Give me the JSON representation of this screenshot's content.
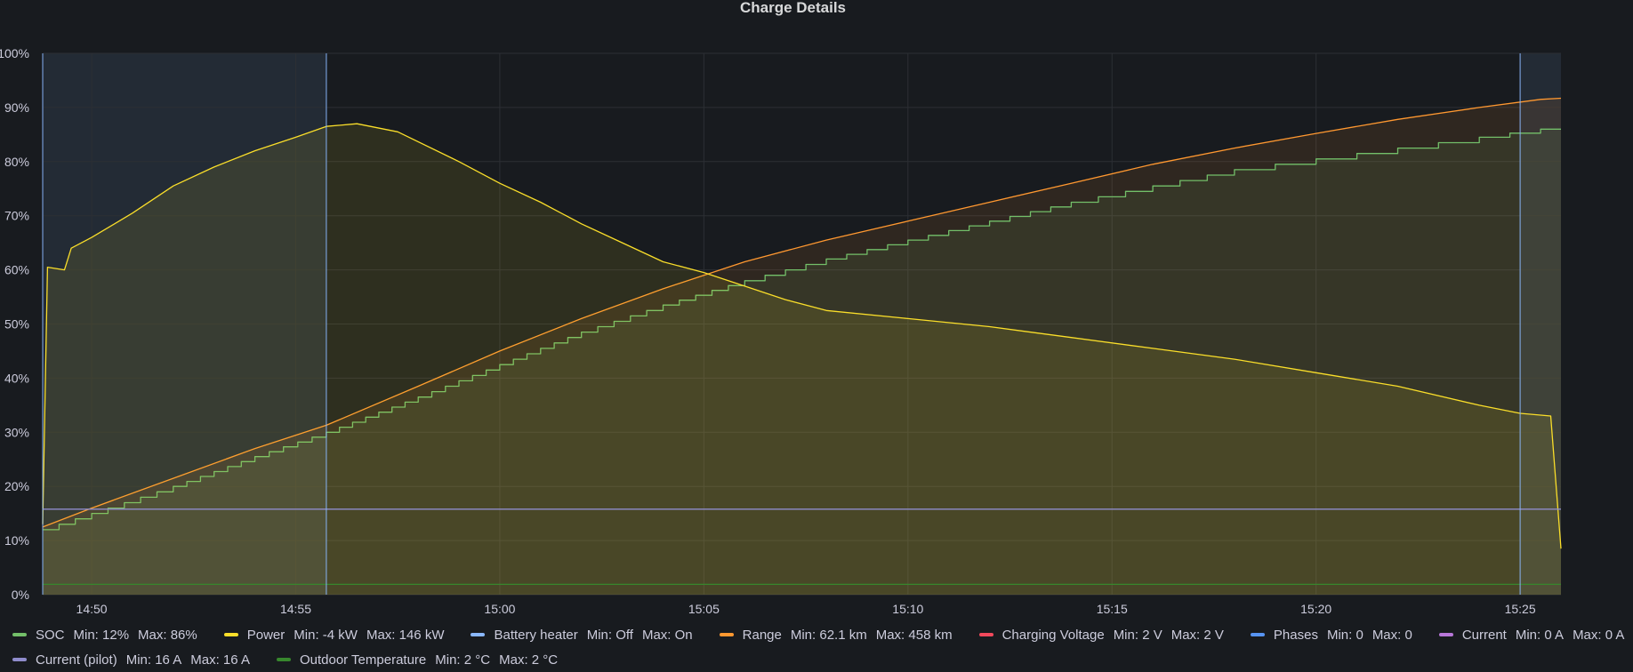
{
  "panel": {
    "title": "Charge Details"
  },
  "colors": {
    "background": "#181b1f",
    "grid": "#2c2f34",
    "soc": "#73bf69",
    "power": "#fade2a",
    "battery_heater": "#8ab8ff",
    "range": "#ff9830",
    "charging_voltage": "#f2495c",
    "phases": "#5794f2",
    "current": "#b877d9",
    "current_pilot": "#8f8ccc",
    "outdoor_temperature": "#37872d",
    "region": "#8ab8ff"
  },
  "chart_data": {
    "type": "line",
    "title": "Charge Details",
    "x_range": [
      "14:48:48",
      "15:26:00"
    ],
    "ylim": [
      0,
      100
    ],
    "y_ticks": [
      "0%",
      "10%",
      "20%",
      "30%",
      "40%",
      "50%",
      "60%",
      "70%",
      "80%",
      "90%",
      "100%"
    ],
    "x_ticks": [
      {
        "time": "14:50",
        "label": "14:50"
      },
      {
        "time": "14:55",
        "label": "14:55"
      },
      {
        "time": "15:00",
        "label": "15:00"
      },
      {
        "time": "15:05",
        "label": "15:05"
      },
      {
        "time": "15:10",
        "label": "15:10"
      },
      {
        "time": "15:15",
        "label": "15:15"
      },
      {
        "time": "15:20",
        "label": "15:20"
      },
      {
        "time": "15:25",
        "label": "15:25"
      }
    ],
    "shaded_regions": [
      {
        "start": "14:48:48",
        "end": "14:55:45"
      },
      {
        "start": "15:25:00",
        "end": "15:26:00"
      }
    ],
    "series": [
      {
        "name": "Range",
        "color": "#ff9830",
        "fill": true,
        "x": [
          "14:48:48",
          "14:50:00",
          "14:52:00",
          "14:54:00",
          "14:55:45",
          "14:58:00",
          "15:00:00",
          "15:02:00",
          "15:04:00",
          "15:06:00",
          "15:08:00",
          "15:10:00",
          "15:12:00",
          "15:14:00",
          "15:16:00",
          "15:18:00",
          "15:20:00",
          "15:22:00",
          "15:24:00",
          "15:25:30",
          "15:26:00"
        ],
        "y": [
          12.5,
          16,
          21.5,
          27,
          31.3,
          38.5,
          45,
          51,
          56.5,
          61.5,
          65.5,
          69,
          72.5,
          76,
          79.5,
          82.5,
          85.2,
          87.8,
          90,
          91.5,
          91.7
        ]
      },
      {
        "name": "SOC",
        "color": "#73bf69",
        "fill": true,
        "step": true,
        "x": [
          "14:48:48",
          "14:50:00",
          "14:52:00",
          "14:54:00",
          "14:55:45",
          "14:58:00",
          "15:00:00",
          "15:02:00",
          "15:04:00",
          "15:06:00",
          "15:08:00",
          "15:10:00",
          "15:12:00",
          "15:14:00",
          "15:16:00",
          "15:18:00",
          "15:20:00",
          "15:22:00",
          "15:24:00",
          "15:25:30",
          "15:26:00"
        ],
        "y": [
          12,
          15,
          20,
          25.5,
          30,
          36.5,
          42.5,
          48.5,
          53.5,
          58,
          62,
          65.5,
          69,
          72.5,
          75.5,
          78.5,
          80.5,
          82.5,
          84.5,
          86,
          86
        ]
      },
      {
        "name": "Power",
        "color": "#fade2a",
        "fill": true,
        "x": [
          "14:48:48",
          "14:48:55",
          "14:49:20",
          "14:49:30",
          "14:50:00",
          "14:51:00",
          "14:52:00",
          "14:53:00",
          "14:54:00",
          "14:55:00",
          "14:55:45",
          "14:56:30",
          "14:57:30",
          "14:59:00",
          "15:00:00",
          "15:01:00",
          "15:02:00",
          "15:03:00",
          "15:04:00",
          "15:05:00",
          "15:06:00",
          "15:07:00",
          "15:08:00",
          "15:10:00",
          "15:12:00",
          "15:14:00",
          "15:16:00",
          "15:18:00",
          "15:20:00",
          "15:22:00",
          "15:24:00",
          "15:25:00",
          "15:25:45",
          "15:26:00"
        ],
        "y": [
          13,
          60.5,
          60,
          64,
          66,
          70.5,
          75.5,
          79,
          82,
          84.5,
          86.5,
          87,
          85.5,
          80,
          76,
          72.5,
          68.5,
          65,
          61.5,
          59.5,
          57,
          54.5,
          52.5,
          51,
          49.5,
          47.5,
          45.5,
          43.5,
          41,
          38.5,
          35,
          33.5,
          33,
          8.5
        ]
      },
      {
        "name": "Current (pilot)",
        "color": "#8f8ccc",
        "fill": false,
        "x": [
          "14:48:48",
          "15:26:00"
        ],
        "y": [
          15.8,
          15.8
        ]
      },
      {
        "name": "Outdoor Temperature",
        "color": "#37872d",
        "fill": false,
        "x": [
          "14:48:48",
          "15:26:00"
        ],
        "y": [
          1.9,
          1.9
        ]
      }
    ]
  },
  "legend": {
    "rows": [
      [
        {
          "name": "SOC",
          "color": "#73bf69",
          "min": "Min: 12%",
          "max": "Max: 86%"
        },
        {
          "name": "Power",
          "color": "#fade2a",
          "min": "Min: -4 kW",
          "max": "Max: 146 kW"
        },
        {
          "name": "Battery heater",
          "color": "#8ab8ff",
          "min": "Min: Off",
          "max": "Max: On"
        },
        {
          "name": "Range",
          "color": "#ff9830",
          "min": "Min: 62.1 km",
          "max": "Max: 458 km"
        },
        {
          "name": "Charging Voltage",
          "color": "#f2495c",
          "min": "Min: 2 V",
          "max": "Max: 2 V"
        },
        {
          "name": "Phases",
          "color": "#5794f2",
          "min": "Min: 0",
          "max": "Max: 0"
        },
        {
          "name": "Current",
          "color": "#b877d9",
          "min": "Min: 0 A",
          "max": "Max: 0 A"
        }
      ],
      [
        {
          "name": "Current (pilot)",
          "color": "#8f8ccc",
          "min": "Min: 16 A",
          "max": "Max: 16 A"
        },
        {
          "name": "Outdoor Temperature",
          "color": "#37872d",
          "min": "Min: 2 °C",
          "max": "Max: 2 °C"
        }
      ]
    ]
  }
}
